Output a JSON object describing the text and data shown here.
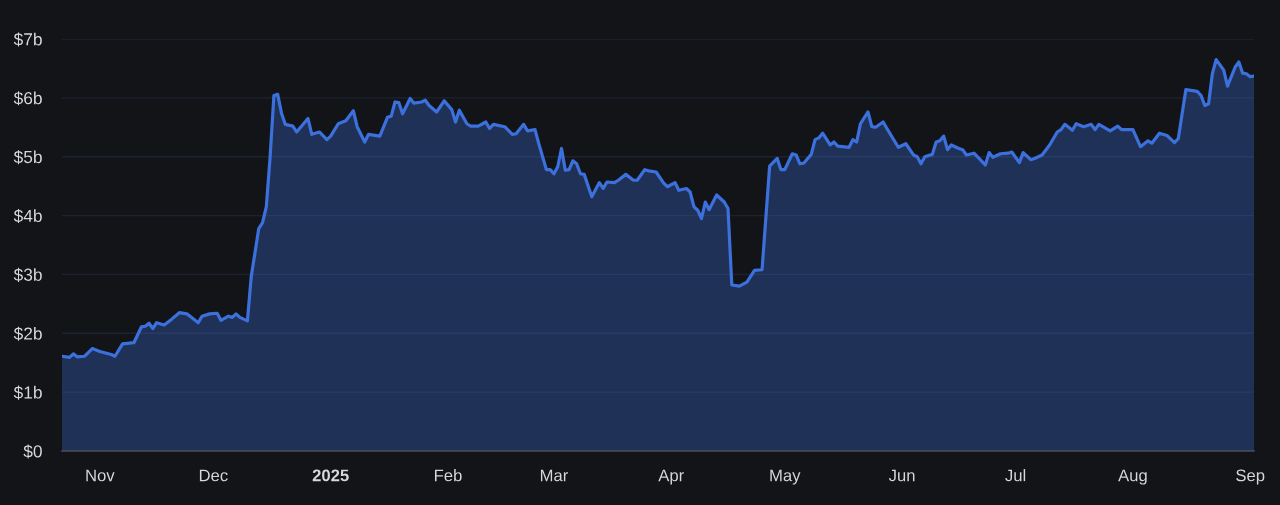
{
  "chart_data": {
    "type": "area",
    "x": [
      "2024-10-22",
      "2024-10-24",
      "2024-10-25",
      "2024-10-26",
      "2024-10-28",
      "2024-10-30",
      "2024-11-01",
      "2024-11-04",
      "2024-11-05",
      "2024-11-07",
      "2024-11-10",
      "2024-11-12",
      "2024-11-13",
      "2024-11-14",
      "2024-11-15",
      "2024-11-16",
      "2024-11-18",
      "2024-11-20",
      "2024-11-22",
      "2024-11-24",
      "2024-11-27",
      "2024-11-28",
      "2024-11-30",
      "2024-12-02",
      "2024-12-03",
      "2024-12-05",
      "2024-12-06",
      "2024-12-07",
      "2024-12-08",
      "2024-12-10",
      "2024-12-11",
      "2024-12-13",
      "2024-12-14",
      "2024-12-15",
      "2024-12-16",
      "2024-12-17",
      "2024-12-18",
      "2024-12-19",
      "2024-12-20",
      "2024-12-22",
      "2024-12-23",
      "2024-12-26",
      "2024-12-27",
      "2024-12-29",
      "2024-12-31",
      "2025-01-01",
      "2025-01-03",
      "2025-01-05",
      "2025-01-07",
      "2025-01-08",
      "2025-01-10",
      "2025-01-11",
      "2025-01-14",
      "2025-01-16",
      "2025-01-17",
      "2025-01-18",
      "2025-01-19",
      "2025-01-20",
      "2025-01-22",
      "2025-01-23",
      "2025-01-25",
      "2025-01-26",
      "2025-01-27",
      "2025-01-29",
      "2025-01-31",
      "2025-02-02",
      "2025-02-03",
      "2025-02-04",
      "2025-02-06",
      "2025-02-07",
      "2025-02-09",
      "2025-02-11",
      "2025-02-12",
      "2025-02-13",
      "2025-02-16",
      "2025-02-18",
      "2025-02-19",
      "2025-02-21",
      "2025-02-22",
      "2025-02-24",
      "2025-02-25",
      "2025-02-27",
      "2025-02-28",
      "2025-03-01",
      "2025-03-02",
      "2025-03-03",
      "2025-03-04",
      "2025-03-05",
      "2025-03-06",
      "2025-03-07",
      "2025-03-08",
      "2025-03-09",
      "2025-03-11",
      "2025-03-13",
      "2025-03-14",
      "2025-03-15",
      "2025-03-17",
      "2025-03-18",
      "2025-03-20",
      "2025-03-22",
      "2025-03-23",
      "2025-03-25",
      "2025-03-26",
      "2025-03-28",
      "2025-03-30",
      "2025-03-31",
      "2025-04-02",
      "2025-04-03",
      "2025-04-05",
      "2025-04-06",
      "2025-04-07",
      "2025-04-08",
      "2025-04-09",
      "2025-04-10",
      "2025-04-11",
      "2025-04-13",
      "2025-04-15",
      "2025-04-16",
      "2025-04-17",
      "2025-04-19",
      "2025-04-21",
      "2025-04-23",
      "2025-04-25",
      "2025-04-27",
      "2025-04-29",
      "2025-04-30",
      "2025-05-01",
      "2025-05-03",
      "2025-05-04",
      "2025-05-05",
      "2025-05-06",
      "2025-05-08",
      "2025-05-09",
      "2025-05-10",
      "2025-05-11",
      "2025-05-13",
      "2025-05-14",
      "2025-05-15",
      "2025-05-18",
      "2025-05-19",
      "2025-05-20",
      "2025-05-21",
      "2025-05-23",
      "2025-05-24",
      "2025-05-25",
      "2025-05-27",
      "2025-05-28",
      "2025-05-31",
      "2025-06-02",
      "2025-06-04",
      "2025-06-05",
      "2025-06-06",
      "2025-06-07",
      "2025-06-09",
      "2025-06-10",
      "2025-06-11",
      "2025-06-12",
      "2025-06-13",
      "2025-06-14",
      "2025-06-16",
      "2025-06-17",
      "2025-06-18",
      "2025-06-20",
      "2025-06-23",
      "2025-06-24",
      "2025-06-25",
      "2025-06-27",
      "2025-06-29",
      "2025-06-30",
      "2025-07-02",
      "2025-07-03",
      "2025-07-05",
      "2025-07-06",
      "2025-07-08",
      "2025-07-10",
      "2025-07-12",
      "2025-07-13",
      "2025-07-14",
      "2025-07-16",
      "2025-07-17",
      "2025-07-19",
      "2025-07-21",
      "2025-07-22",
      "2025-07-23",
      "2025-07-26",
      "2025-07-28",
      "2025-07-29",
      "2025-08-01",
      "2025-08-03",
      "2025-08-05",
      "2025-08-06",
      "2025-08-08",
      "2025-08-10",
      "2025-08-12",
      "2025-08-13",
      "2025-08-15",
      "2025-08-18",
      "2025-08-19",
      "2025-08-20",
      "2025-08-21",
      "2025-08-22",
      "2025-08-23",
      "2025-08-25",
      "2025-08-26",
      "2025-08-28",
      "2025-08-29",
      "2025-08-30",
      "2025-08-31",
      "2025-09-01",
      "2025-09-02"
    ],
    "series": [
      {
        "color": "#3b70dd",
        "values": [
          1.61,
          1.59,
          1.65,
          1.6,
          1.61,
          1.74,
          1.69,
          1.64,
          1.61,
          1.82,
          1.84,
          2.11,
          2.12,
          2.17,
          2.08,
          2.18,
          2.14,
          2.24,
          2.35,
          2.33,
          2.18,
          2.29,
          2.33,
          2.34,
          2.22,
          2.29,
          2.27,
          2.33,
          2.27,
          2.21,
          2.96,
          3.78,
          3.88,
          4.15,
          5.0,
          6.04,
          6.06,
          5.74,
          5.55,
          5.52,
          5.42,
          5.65,
          5.38,
          5.42,
          5.29,
          5.35,
          5.56,
          5.61,
          5.78,
          5.51,
          5.25,
          5.38,
          5.35,
          5.67,
          5.69,
          5.93,
          5.92,
          5.73,
          5.99,
          5.91,
          5.93,
          5.96,
          5.87,
          5.76,
          5.95,
          5.8,
          5.59,
          5.79,
          5.56,
          5.52,
          5.52,
          5.59,
          5.48,
          5.55,
          5.51,
          5.38,
          5.39,
          5.55,
          5.44,
          5.46,
          5.22,
          4.78,
          4.78,
          4.71,
          4.83,
          5.14,
          4.77,
          4.78,
          4.93,
          4.88,
          4.71,
          4.7,
          4.32,
          4.56,
          4.46,
          4.57,
          4.56,
          4.6,
          4.7,
          4.6,
          4.6,
          4.78,
          4.76,
          4.74,
          4.55,
          4.49,
          4.56,
          4.43,
          4.46,
          4.4,
          4.15,
          4.09,
          3.95,
          4.23,
          4.1,
          4.35,
          4.23,
          4.12,
          2.82,
          2.8,
          2.87,
          3.07,
          3.08,
          4.84,
          4.97,
          4.78,
          4.78,
          5.05,
          5.03,
          4.88,
          4.89,
          5.04,
          5.29,
          5.32,
          5.4,
          5.2,
          5.25,
          5.18,
          5.16,
          5.29,
          5.25,
          5.56,
          5.76,
          5.51,
          5.5,
          5.59,
          5.48,
          5.16,
          5.22,
          5.03,
          5.0,
          4.88,
          5.0,
          5.04,
          5.25,
          5.27,
          5.35,
          5.12,
          5.2,
          5.14,
          5.12,
          5.03,
          5.06,
          4.86,
          5.07,
          4.99,
          5.05,
          5.06,
          5.08,
          4.9,
          5.07,
          4.95,
          4.97,
          5.03,
          5.2,
          5.42,
          5.46,
          5.55,
          5.45,
          5.56,
          5.51,
          5.55,
          5.46,
          5.55,
          5.44,
          5.52,
          5.46,
          5.46,
          5.17,
          5.27,
          5.23,
          5.4,
          5.36,
          5.24,
          5.31,
          6.14,
          6.11,
          6.04,
          5.87,
          5.9,
          6.41,
          6.65,
          6.47,
          6.2,
          6.52,
          6.61,
          6.42,
          6.41,
          6.36,
          6.37
        ]
      }
    ],
    "xlim": [
      "2024-10-22",
      "2025-09-02"
    ],
    "xticks": [
      {
        "value": "2024-11-01",
        "label": "Nov"
      },
      {
        "value": "2024-12-01",
        "label": "Dec"
      },
      {
        "value": "2025-01-01",
        "label": "2025"
      },
      {
        "value": "2025-02-01",
        "label": "Feb"
      },
      {
        "value": "2025-03-01",
        "label": "Mar"
      },
      {
        "value": "2025-04-01",
        "label": "Apr"
      },
      {
        "value": "2025-05-01",
        "label": "May"
      },
      {
        "value": "2025-06-01",
        "label": "Jun"
      },
      {
        "value": "2025-07-01",
        "label": "Jul"
      },
      {
        "value": "2025-08-01",
        "label": "Aug"
      },
      {
        "value": "2025-09-01",
        "label": "Sep"
      }
    ],
    "ylim": [
      0,
      7
    ],
    "yticks": [
      {
        "value": 0,
        "label": "$0"
      },
      {
        "value": 1,
        "label": "$1b"
      },
      {
        "value": 2,
        "label": "$2b"
      },
      {
        "value": 3,
        "label": "$3b"
      },
      {
        "value": 4,
        "label": "$4b"
      },
      {
        "value": 5,
        "label": "$5b"
      },
      {
        "value": 6,
        "label": "$6b"
      },
      {
        "value": 7,
        "label": "$7b"
      }
    ],
    "grid": "y"
  }
}
